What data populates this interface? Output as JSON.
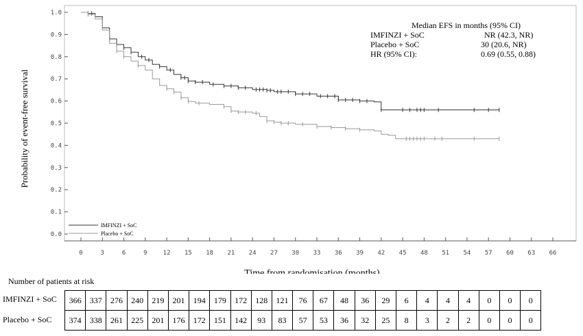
{
  "chart_data": {
    "type": "line",
    "title": "",
    "xlabel": "Time from randomisation (months)",
    "ylabel": "Probability of event-free survival",
    "xlim": [
      0,
      66
    ],
    "ylim": [
      0,
      1
    ],
    "x_ticks": [
      0,
      3,
      6,
      9,
      12,
      15,
      18,
      21,
      24,
      27,
      30,
      33,
      36,
      39,
      42,
      45,
      48,
      51,
      54,
      57,
      60,
      63,
      66
    ],
    "y_ticks": [
      "0.0",
      "0.1",
      "0.2",
      "0.3",
      "0.4",
      "0.5",
      "0.6",
      "0.7",
      "0.8",
      "0.9",
      "1.0"
    ],
    "series": [
      {
        "name": "IMFINZI + SoC",
        "color": "#333333",
        "x": [
          0,
          1,
          2,
          3,
          4,
          5,
          6,
          7,
          8,
          9,
          10,
          11,
          12,
          13,
          14,
          15,
          16,
          18,
          20,
          22,
          24,
          26,
          27,
          30,
          33,
          36,
          39,
          41,
          42,
          45,
          48,
          51,
          54,
          57,
          58.5
        ],
        "y": [
          1.0,
          0.995,
          0.98,
          0.93,
          0.88,
          0.855,
          0.84,
          0.82,
          0.8,
          0.785,
          0.765,
          0.755,
          0.74,
          0.72,
          0.705,
          0.69,
          0.685,
          0.675,
          0.668,
          0.66,
          0.652,
          0.648,
          0.642,
          0.632,
          0.622,
          0.605,
          0.6,
          0.596,
          0.56,
          0.56,
          0.56,
          0.56,
          0.56,
          0.56,
          0.56
        ],
        "censor_x": [
          1,
          1.5,
          4,
          5,
          6,
          7,
          8.5,
          9.5,
          11,
          12.5,
          14,
          14.5,
          15,
          16,
          17,
          18.5,
          20,
          21,
          22,
          23,
          24.5,
          25,
          25.5,
          26,
          26.5,
          27.5,
          28,
          29,
          30,
          31,
          32,
          33.5,
          34.5,
          35.5,
          36,
          37,
          38,
          39,
          40,
          42,
          45,
          46,
          47,
          47.5,
          48,
          50,
          55,
          57,
          58.5
        ]
      },
      {
        "name": "Placebo + SoC",
        "color": "#999999",
        "x": [
          0,
          1,
          2,
          3,
          4,
          5,
          6,
          7,
          8,
          9,
          10,
          11,
          12,
          13,
          14,
          15,
          16,
          18,
          19,
          20,
          21,
          22,
          24,
          25,
          26,
          27,
          28,
          30,
          33,
          35,
          37,
          39,
          41,
          42,
          43,
          44,
          45,
          48,
          51,
          54,
          57,
          58.5
        ],
        "y": [
          1.0,
          0.99,
          0.97,
          0.92,
          0.86,
          0.825,
          0.8,
          0.78,
          0.76,
          0.74,
          0.7,
          0.67,
          0.655,
          0.64,
          0.615,
          0.598,
          0.59,
          0.585,
          0.585,
          0.575,
          0.555,
          0.55,
          0.545,
          0.53,
          0.51,
          0.505,
          0.5,
          0.495,
          0.485,
          0.48,
          0.475,
          0.47,
          0.465,
          0.45,
          0.445,
          0.43,
          0.43,
          0.43,
          0.43,
          0.43,
          0.43,
          0.43
        ],
        "censor_x": [
          1,
          5,
          6,
          8,
          12,
          13,
          14,
          15,
          16.5,
          20,
          21,
          22,
          23,
          24.5,
          26,
          27,
          28,
          29,
          31,
          33,
          35,
          37,
          39,
          45.5,
          46,
          46.5,
          47,
          47.5,
          48,
          49.5,
          50.5,
          55,
          58.5
        ]
      }
    ],
    "legend": {
      "placement": "bottom-left",
      "entries": [
        "IMFINZI + SoC",
        "Placebo + SoC"
      ]
    },
    "annotation": {
      "heading": "Median EFS in months (95% CI)",
      "rows": [
        {
          "label": "IMFINZI + SoC",
          "value": "NR (42.3, NR)"
        },
        {
          "label": "Placebo + SoC",
          "value": "30 (20.6, NR)"
        },
        {
          "label": "HR (95% CI):",
          "value": "0.69 (0.55, 0.88)"
        }
      ]
    },
    "risk_table": {
      "title": "Number of patients at risk",
      "rows": [
        {
          "label": "IMFINZI + SoC",
          "values": [
            "366",
            "337",
            "276",
            "240",
            "219",
            "201",
            "194",
            "179",
            "172",
            "128",
            "121",
            "76",
            "67",
            "48",
            "36",
            "29",
            "6",
            "4",
            "4",
            "4",
            "0",
            "0",
            "0"
          ]
        },
        {
          "label": "Placebo + SoC",
          "values": [
            "374",
            "338",
            "261",
            "225",
            "201",
            "176",
            "172",
            "151",
            "142",
            "93",
            "83",
            "57",
            "53",
            "36",
            "32",
            "25",
            "8",
            "3",
            "2",
            "2",
            "0",
            "0",
            "0"
          ]
        }
      ]
    }
  }
}
